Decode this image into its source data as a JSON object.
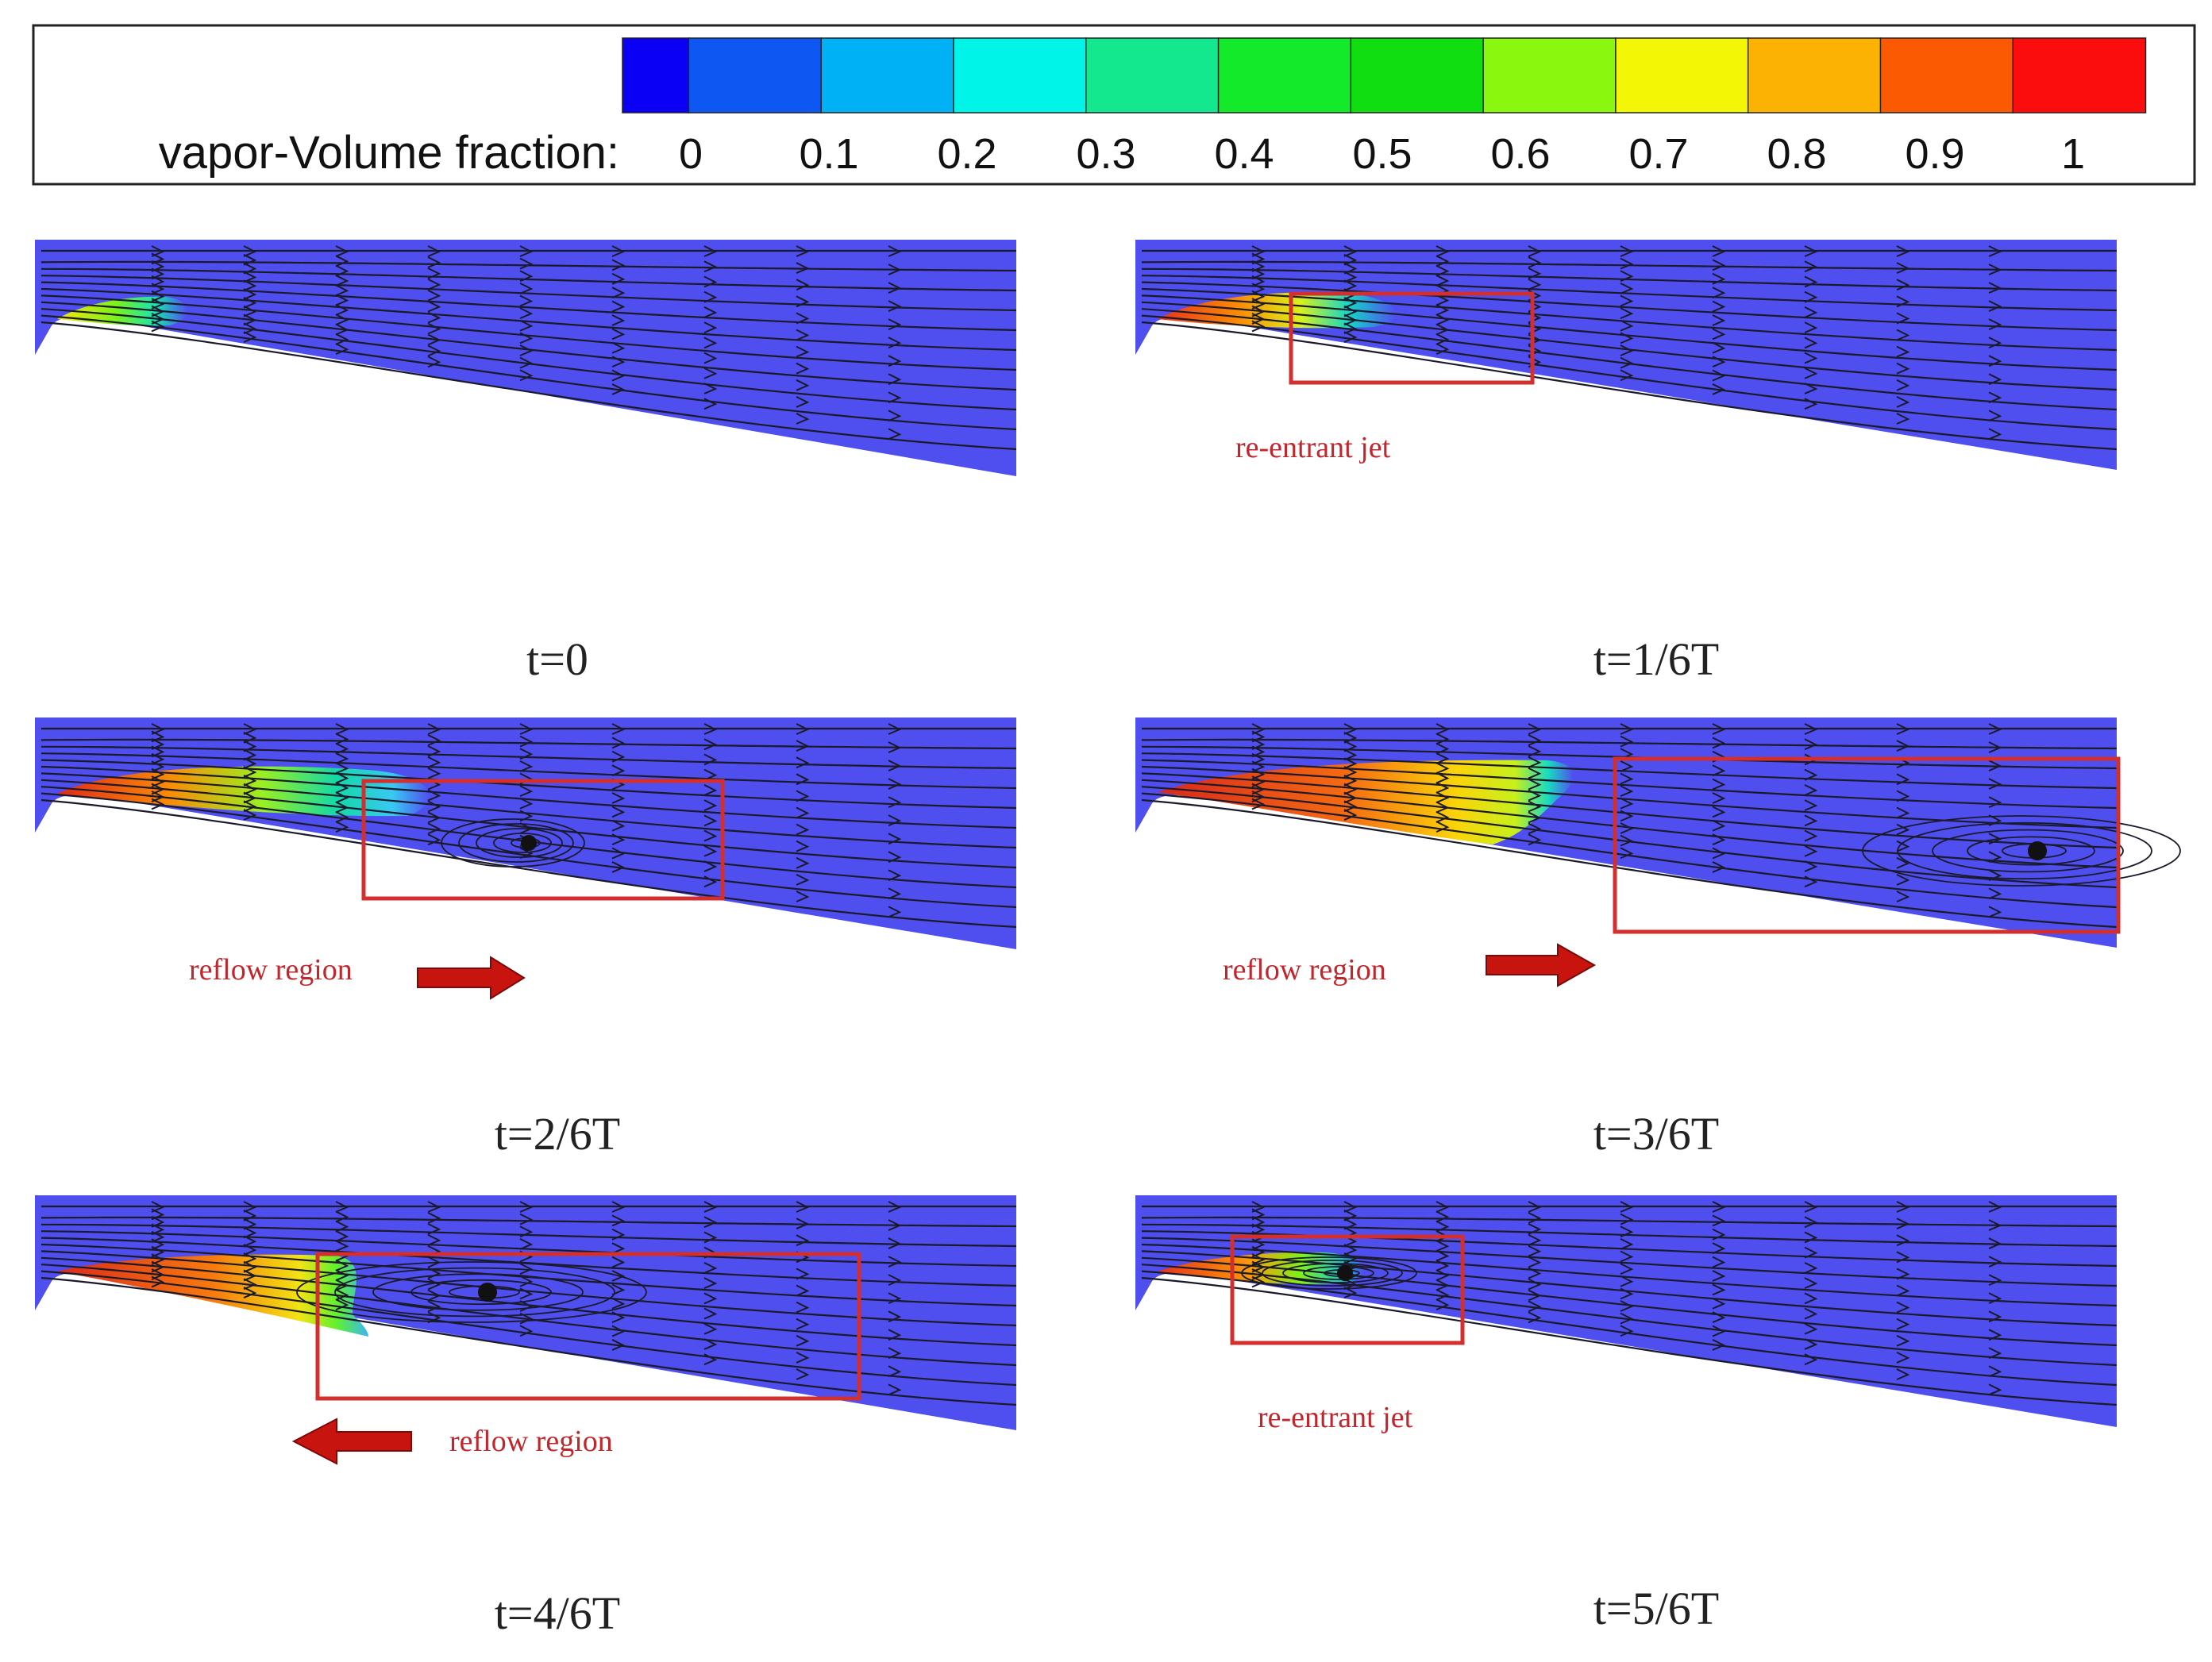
{
  "legend": {
    "title": "vapor-Volume fraction:",
    "ticks": [
      "0",
      "0.1",
      "0.2",
      "0.3",
      "0.4",
      "0.5",
      "0.6",
      "0.7",
      "0.8",
      "0.9",
      "1"
    ],
    "swatch_colors": [
      "#0a00f5",
      "#0f57f3",
      "#00b2f5",
      "#00f5e8",
      "#14e88e",
      "#12ea2a",
      "#10de10",
      "#8af70f",
      "#f3f705",
      "#fcb203",
      "#fc5903",
      "#fc0d0d"
    ]
  },
  "colors": {
    "liquid": "#4f4ff0",
    "streamline": "#1a1a2a",
    "highlight_box": "#d32f2f",
    "arrow": "#c8140f"
  },
  "panels": [
    {
      "caption": "t=0"
    },
    {
      "caption": "t=1/6T",
      "annotation": "re-entrant jet"
    },
    {
      "caption": "t=2/6T",
      "annotation": "reflow region",
      "arrow_direction": "right"
    },
    {
      "caption": "t=3/6T",
      "annotation": "reflow region",
      "arrow_direction": "right"
    },
    {
      "caption": "t=4/6T",
      "annotation": "reflow region",
      "arrow_direction": "left"
    },
    {
      "caption": "t=5/6T",
      "annotation": "re-entrant jet"
    }
  ]
}
